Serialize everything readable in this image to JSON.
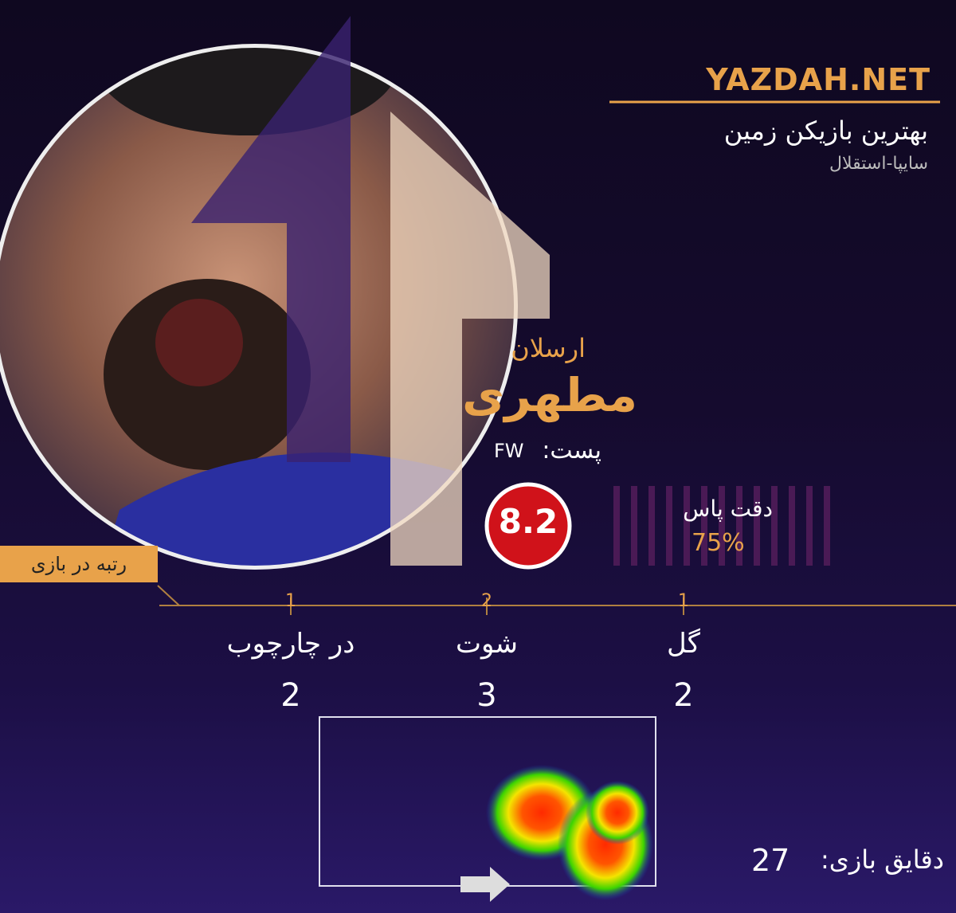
{
  "header": {
    "site": "YAZDAH.NET",
    "title": "بهترین بازیکن زمین",
    "match": "سایپا-استقلال"
  },
  "player": {
    "first_name": "ارسلان",
    "last_name": "مطهری",
    "position_label": "پست:",
    "position": "FW",
    "rating": 8.2,
    "pass_accuracy_label": "دقت پاس",
    "pass_accuracy": "75%"
  },
  "stats": {
    "rank_label": "رتبه در بازی",
    "items": [
      {
        "rank": 1,
        "label": "در چارچوب",
        "value": 2
      },
      {
        "rank": 2,
        "label": "شوت",
        "value": 3
      },
      {
        "rank": 1,
        "label": "گل",
        "value": 2
      }
    ],
    "minutes_label": "دقایق بازی:",
    "minutes": 27
  }
}
